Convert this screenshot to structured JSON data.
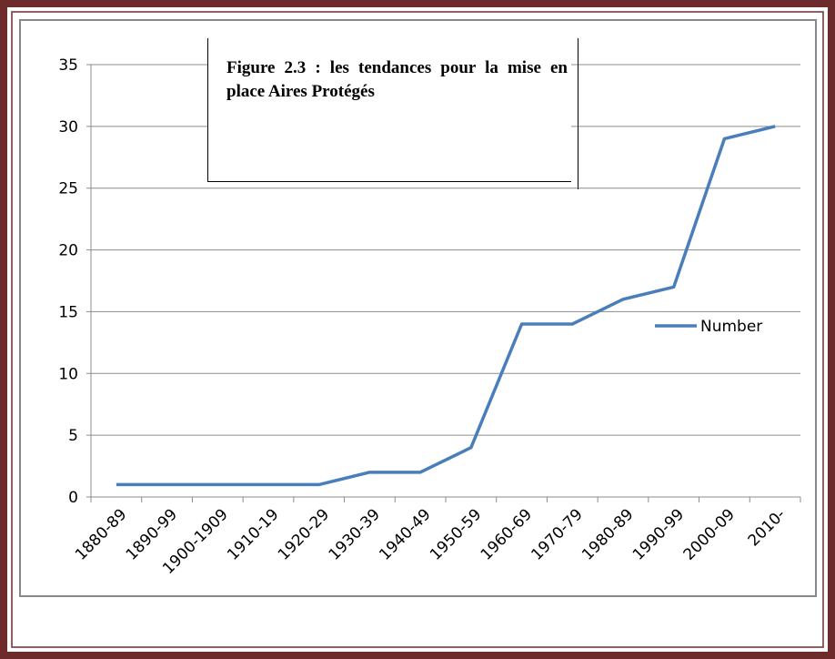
{
  "chart_data": {
    "type": "line",
    "title": "Figure 2.3 : les tendances pour la mise en place Aires  Protégés",
    "categories": [
      "1880-89",
      "1890-99",
      "1900-1909",
      "1910-19",
      "1920-29",
      "1930-39",
      "1940-49",
      "1950-59",
      "1960-69",
      "1970-79",
      "1980-89",
      "1990-99",
      "2000-09",
      "2010-"
    ],
    "series": [
      {
        "name": "Number",
        "color": "#4a7ebb",
        "values": [
          1,
          1,
          1,
          1,
          1,
          2,
          2,
          4,
          14,
          14,
          16,
          17,
          29,
          30
        ]
      }
    ],
    "ylim": [
      0,
      35
    ],
    "yticks": [
      0,
      5,
      10,
      15,
      20,
      25,
      30,
      35
    ],
    "grid": true,
    "legend": "right"
  }
}
